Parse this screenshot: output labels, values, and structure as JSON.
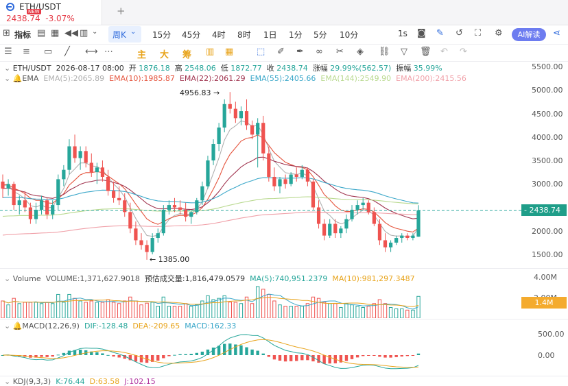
{
  "tab": {
    "symbol": "ETH/USDT",
    "price": "2438.74",
    "change": "-3.07%",
    "new_badge": "NEW",
    "add": "+"
  },
  "toolbar": {
    "indicators": "指标",
    "period": "周K",
    "intervals": [
      "15分",
      "45分",
      "4时",
      "8时",
      "1日",
      "1分",
      "5分",
      "10分"
    ],
    "sec": "1s",
    "ai": "AI解读"
  },
  "draw_tools": {
    "zhu": "主",
    "da": "大",
    "chou": "筹"
  },
  "legend": {
    "symbol": "ETH/USDT",
    "date": "2026-08-17 08:00",
    "open_label": "开",
    "open": "1876.18",
    "high_label": "高",
    "high": "2548.06",
    "low_label": "低",
    "low": "1872.77",
    "close_label": "收",
    "close": "2438.74",
    "chg_label": "涨幅",
    "chg": "29.99%(562.57)",
    "amp_label": "振幅",
    "amp": "35.99%"
  },
  "ema": {
    "label": "EMA",
    "lines": [
      {
        "text": "EMA(5):2065.89",
        "color": "#b0b0b0"
      },
      {
        "text": "EMA(10):1985.87",
        "color": "#e5553e"
      },
      {
        "text": "EMA(22):2061.29",
        "color": "#a0344f"
      },
      {
        "text": "EMA(55):2405.66",
        "color": "#3aa7c9"
      },
      {
        "text": "EMA(144):2549.90",
        "color": "#b9d98f"
      },
      {
        "text": "EMA(200):2415.56",
        "color": "#f0a0a8"
      }
    ]
  },
  "price_axis": [
    "5500.00",
    "5000.00",
    "4500.00",
    "4000.00",
    "3500.00",
    "3000.00",
    "2500.00",
    "2000.00",
    "1500.00"
  ],
  "price_tag": "2438.74",
  "annotations": {
    "high": "4956.83 →",
    "low": "← 1385.00"
  },
  "volume": {
    "label": "Volume",
    "vol": "VOLUME:1,371,627.9018",
    "est": "预估成交量:1,816,479.0579",
    "ma5": "MA(5):740,951.2379",
    "ma10": "MA(10):981,297.3487",
    "axis_top": "4.00M",
    "axis_mid": "2.00M",
    "tag": "1.4M"
  },
  "macd": {
    "label": "MACD(12,26,9)",
    "dif": "DIF:-128.48",
    "dea": "DEA:-209.65",
    "macd": "MACD:162.33",
    "axis_top": "500.00",
    "axis_zero": "0.00"
  },
  "kdj": {
    "label": "KDJ(9,3,3)",
    "k": "K:76.44",
    "d": "D:63.58",
    "j": "J:102.15"
  },
  "colors": {
    "up": "#26a69a",
    "down": "#ef5350",
    "accent": "#2f6bdc"
  },
  "chart_data": {
    "type": "candlestick",
    "y_range": [
      1200,
      5700
    ],
    "candles": [
      [
        3050,
        3200,
        2700,
        2900
      ],
      [
        2900,
        3100,
        2750,
        3000
      ],
      [
        3000,
        3050,
        2450,
        2550
      ],
      [
        2550,
        2750,
        2350,
        2650
      ],
      [
        2650,
        2850,
        2400,
        2500
      ],
      [
        2500,
        2600,
        2150,
        2250
      ],
      [
        2250,
        2600,
        2150,
        2450
      ],
      [
        2450,
        2750,
        2350,
        2650
      ],
      [
        2650,
        2700,
        2250,
        2350
      ],
      [
        2350,
        2650,
        2250,
        2550
      ],
      [
        2550,
        3200,
        2450,
        3100
      ],
      [
        3100,
        3400,
        2950,
        3300
      ],
      [
        3300,
        3950,
        3200,
        3800
      ],
      [
        3800,
        4050,
        3450,
        3550
      ],
      [
        3550,
        3800,
        3300,
        3700
      ],
      [
        3700,
        3800,
        3350,
        3450
      ],
      [
        3450,
        3650,
        3150,
        3250
      ],
      [
        3250,
        3450,
        3000,
        3350
      ],
      [
        3350,
        3500,
        3050,
        3150
      ],
      [
        3150,
        3300,
        2750,
        2850
      ],
      [
        2850,
        3050,
        2600,
        2700
      ],
      [
        2700,
        2950,
        2550,
        2650
      ],
      [
        2650,
        2800,
        2300,
        2400
      ],
      [
        2400,
        2600,
        1950,
        2050
      ],
      [
        2050,
        2200,
        1700,
        1800
      ],
      [
        1800,
        1950,
        1600,
        1700
      ],
      [
        1700,
        1800,
        1385,
        1550
      ],
      [
        1550,
        1950,
        1500,
        1850
      ],
      [
        1850,
        2050,
        1750,
        1950
      ],
      [
        1950,
        2550,
        1900,
        2450
      ],
      [
        2450,
        2650,
        2350,
        2550
      ],
      [
        2550,
        2700,
        2400,
        2500
      ],
      [
        2500,
        2650,
        2350,
        2450
      ],
      [
        2450,
        2600,
        2200,
        2300
      ],
      [
        2300,
        2450,
        2150,
        2400
      ],
      [
        2400,
        2700,
        2350,
        2650
      ],
      [
        2650,
        3050,
        2550,
        2950
      ],
      [
        2950,
        3600,
        2900,
        3500
      ],
      [
        3500,
        3950,
        3400,
        3850
      ],
      [
        3850,
        4300,
        3700,
        4200
      ],
      [
        4200,
        4800,
        4100,
        4700
      ],
      [
        4700,
        4956.83,
        4500,
        4600
      ],
      [
        4600,
        4750,
        4300,
        4400
      ],
      [
        4400,
        4650,
        4250,
        4550
      ],
      [
        4550,
        4800,
        4150,
        4250
      ],
      [
        4250,
        4350,
        3950,
        4050
      ],
      [
        4050,
        4400,
        3350,
        4300
      ],
      [
        4300,
        4450,
        3500,
        3650
      ],
      [
        3650,
        3800,
        3050,
        3150
      ],
      [
        3150,
        3350,
        2850,
        2950
      ],
      [
        2950,
        3150,
        2800,
        3100
      ],
      [
        3100,
        3200,
        2900,
        3000
      ],
      [
        3000,
        3250,
        2950,
        3200
      ],
      [
        3200,
        3350,
        3050,
        3150
      ],
      [
        3150,
        3400,
        3100,
        3300
      ],
      [
        3300,
        3350,
        2950,
        3050
      ],
      [
        3050,
        3100,
        2450,
        2500
      ],
      [
        2500,
        2650,
        2050,
        2150
      ],
      [
        2150,
        2250,
        1800,
        1900
      ],
      [
        1900,
        2250,
        1850,
        2150
      ],
      [
        2150,
        2250,
        1850,
        1950
      ],
      [
        1950,
        2100,
        1850,
        2050
      ],
      [
        2050,
        2350,
        1950,
        2250
      ],
      [
        2250,
        2550,
        2200,
        2450
      ],
      [
        2450,
        2650,
        2350,
        2550
      ],
      [
        2550,
        2700,
        2450,
        2600
      ],
      [
        2600,
        2650,
        2350,
        2400
      ],
      [
        2400,
        2500,
        2100,
        2150
      ],
      [
        2150,
        2250,
        1700,
        1800
      ],
      [
        1800,
        1950,
        1550,
        1650
      ],
      [
        1650,
        1800,
        1550,
        1750
      ],
      [
        1750,
        1900,
        1700,
        1850
      ],
      [
        1850,
        1950,
        1750,
        1900
      ],
      [
        1900,
        1950,
        1800,
        1850
      ],
      [
        1850,
        1950,
        1800,
        1900
      ],
      [
        1876.18,
        2548.06,
        1872.77,
        2438.74
      ]
    ]
  }
}
